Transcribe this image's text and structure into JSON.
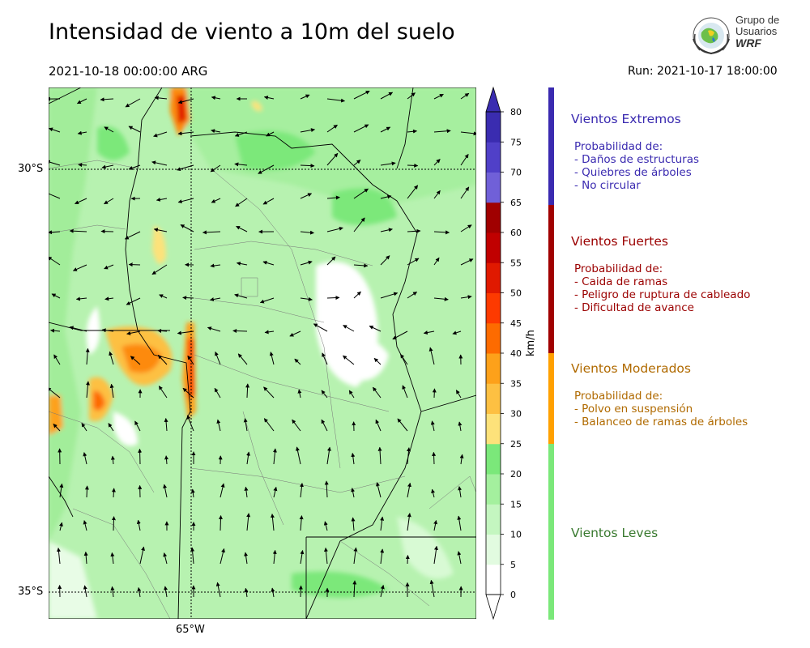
{
  "header": {
    "title": "Intensidad de viento a 10m del suelo",
    "valid_time": "2021-10-18 00:00:00 ARG",
    "run": "Run: 2021-10-17 18:00:00"
  },
  "logo": {
    "line1": "Grupo de",
    "line2": "Usuarios",
    "line3": "WRF"
  },
  "map": {
    "lat_labels": [
      "30°S",
      "35°S"
    ],
    "lon_labels": [
      "65°W"
    ]
  },
  "colorbar": {
    "unit": "km/h",
    "ticks": [
      "0",
      "5",
      "10",
      "15",
      "20",
      "25",
      "30",
      "35",
      "40",
      "45",
      "50",
      "55",
      "60",
      "65",
      "70",
      "75",
      "80"
    ],
    "colors": [
      "#ffffff",
      "#e2fbe0",
      "#c4f6c0",
      "#a4f09e",
      "#7be87a",
      "#fde27a",
      "#fdc042",
      "#fda11a",
      "#fd6b00",
      "#fd3a00",
      "#e01900",
      "#c00000",
      "#a00000",
      "#7060d8",
      "#5040c8",
      "#3a2cb0"
    ]
  },
  "categories": [
    {
      "title": "Vientos Extremos",
      "color": "#3a2ab0",
      "lines": [
        "Probabilidad de:",
        "- Daños de estructuras",
        "- Quiebres de árboles",
        "- No circular"
      ]
    },
    {
      "title": "Vientos Fuertes",
      "color": "#9b0000",
      "lines": [
        "Probabilidad de:",
        "- Caida de ramas",
        "- Peligro de ruptura de cableado",
        "- Dificultad de avance"
      ]
    },
    {
      "title": "Vientos Moderados",
      "color": "#b06a00",
      "lines": [
        "Probabilidad de:",
        "- Polvo en suspensión",
        "- Balanceo de ramas de árboles"
      ]
    },
    {
      "title": "Vientos Leves",
      "color": "#3a7a30",
      "lines": []
    }
  ],
  "category_bar_colors": [
    "#3a2ab0",
    "#a00000",
    "#ffa000",
    "#7be87a"
  ]
}
